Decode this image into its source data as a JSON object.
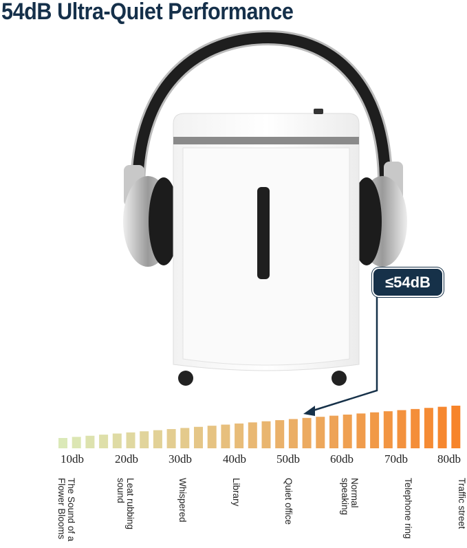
{
  "title": "54dB Ultra-Quiet Performance",
  "badge": "≤54dB",
  "scale": {
    "bar_count": 30,
    "color_start": "#dbe9b8",
    "color_end": "#f7842a",
    "ticks": [
      "10db",
      "20db",
      "30db",
      "40db",
      "50db",
      "60db",
      "70db",
      "80db"
    ],
    "labels": [
      "The Sound of a Flower Blooms",
      "Leat rubbing sound",
      "Whispered",
      "Library",
      "Quiet office",
      "Normal speaking",
      "Telephone ring",
      "Traffic street"
    ]
  },
  "colors": {
    "title": "#15304a",
    "badge": "#163149"
  }
}
